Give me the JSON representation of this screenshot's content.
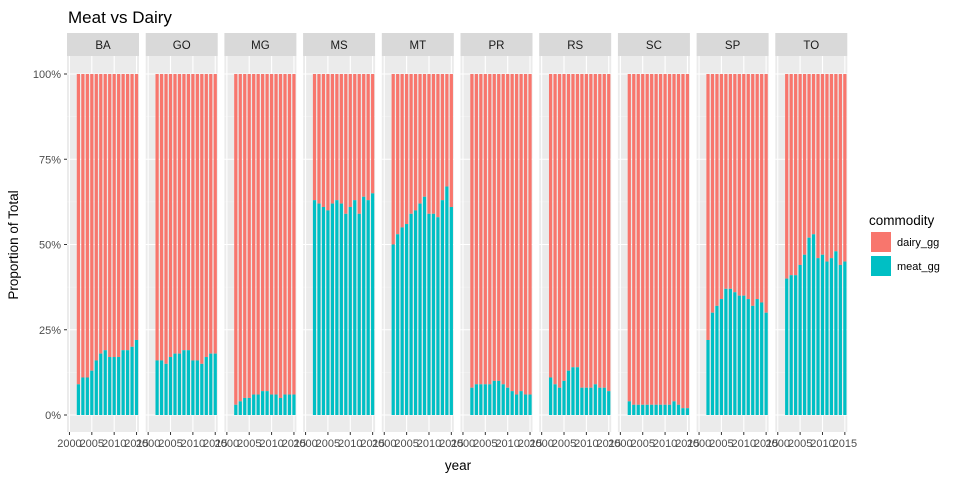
{
  "chart_data": {
    "type": "bar",
    "stacked": true,
    "position": "fill",
    "title": "Meat vs Dairy",
    "xlabel": "year",
    "ylabel": "Proportion of Total",
    "ylim": [
      0,
      1
    ],
    "y_ticks": [
      "0%",
      "25%",
      "50%",
      "75%",
      "100%"
    ],
    "y_tick_values": [
      0,
      0.25,
      0.5,
      0.75,
      1.0
    ],
    "x_ticks": [
      2000,
      2005,
      2010,
      2015
    ],
    "x_tick_labels": [
      "2000",
      "2005",
      "2010",
      "2015"
    ],
    "x": [
      2002,
      2003,
      2004,
      2005,
      2006,
      2007,
      2008,
      2009,
      2010,
      2011,
      2012,
      2013,
      2014,
      2015
    ],
    "legend": {
      "title": "commodity",
      "position": "right",
      "entries": [
        {
          "name": "dairy_gg",
          "color": "#F8766D"
        },
        {
          "name": "meat_gg",
          "color": "#00BFC4"
        }
      ]
    },
    "grid": true,
    "panels": [
      {
        "label": "BA",
        "meat_share": [
          0.09,
          0.11,
          0.11,
          0.13,
          0.16,
          0.18,
          0.19,
          0.17,
          0.17,
          0.17,
          0.19,
          0.19,
          0.2,
          0.22
        ]
      },
      {
        "label": "GO",
        "meat_share": [
          0.16,
          0.16,
          0.15,
          0.17,
          0.18,
          0.18,
          0.19,
          0.19,
          0.16,
          0.16,
          0.15,
          0.17,
          0.18,
          0.18
        ]
      },
      {
        "label": "MG",
        "meat_share": [
          0.03,
          0.04,
          0.05,
          0.05,
          0.06,
          0.06,
          0.07,
          0.07,
          0.06,
          0.06,
          0.05,
          0.06,
          0.06,
          0.06
        ]
      },
      {
        "label": "MS",
        "meat_share": [
          0.63,
          0.62,
          0.61,
          0.6,
          0.62,
          0.63,
          0.62,
          0.59,
          0.61,
          0.63,
          0.59,
          0.64,
          0.63,
          0.65
        ]
      },
      {
        "label": "MT",
        "meat_share": [
          0.5,
          0.53,
          0.55,
          0.56,
          0.59,
          0.6,
          0.62,
          0.64,
          0.59,
          0.59,
          0.58,
          0.63,
          0.67,
          0.61
        ]
      },
      {
        "label": "PR",
        "meat_share": [
          0.08,
          0.09,
          0.09,
          0.09,
          0.09,
          0.1,
          0.1,
          0.09,
          0.08,
          0.07,
          0.06,
          0.07,
          0.06,
          0.06
        ]
      },
      {
        "label": "RS",
        "meat_share": [
          0.11,
          0.09,
          0.08,
          0.1,
          0.13,
          0.14,
          0.14,
          0.08,
          0.08,
          0.08,
          0.09,
          0.08,
          0.08,
          0.07
        ]
      },
      {
        "label": "SC",
        "meat_share": [
          0.04,
          0.03,
          0.03,
          0.03,
          0.03,
          0.03,
          0.03,
          0.03,
          0.03,
          0.03,
          0.04,
          0.03,
          0.02,
          0.02
        ]
      },
      {
        "label": "SP",
        "meat_share": [
          0.22,
          0.3,
          0.32,
          0.34,
          0.37,
          0.37,
          0.36,
          0.35,
          0.35,
          0.34,
          0.32,
          0.34,
          0.33,
          0.3
        ]
      },
      {
        "label": "TO",
        "meat_share": [
          0.4,
          0.41,
          0.41,
          0.44,
          0.47,
          0.52,
          0.53,
          0.46,
          0.47,
          0.45,
          0.46,
          0.48,
          0.44,
          0.45
        ]
      }
    ]
  }
}
